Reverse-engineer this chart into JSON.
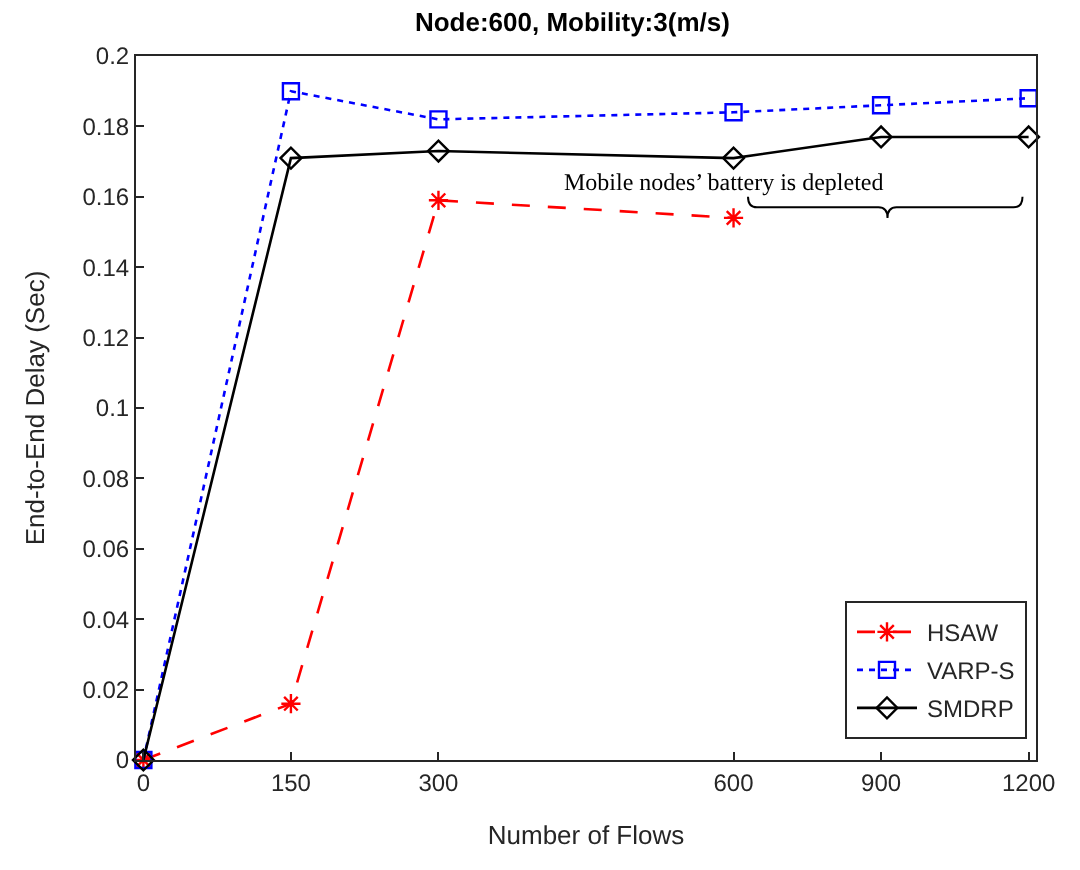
{
  "chart_data": {
    "type": "line",
    "title": "Node:600, Mobility:3(m/s)",
    "xlabel": "Number of Flows",
    "ylabel": "End-to-End Delay (Sec)",
    "categories": [
      "0",
      "150",
      "300",
      null,
      "600",
      "900",
      "1200"
    ],
    "series": [
      {
        "name": "HSAW",
        "color": "#ff0000",
        "marker": "cross",
        "line_style": "dashed",
        "values": [
          0,
          0.016,
          0.159,
          null,
          0.154,
          null,
          null
        ]
      },
      {
        "name": "VARP-S",
        "color": "#0000ff",
        "marker": "square",
        "line_style": "dotted",
        "values": [
          0,
          0.19,
          0.182,
          null,
          0.184,
          0.186,
          0.188
        ]
      },
      {
        "name": "SMDRP",
        "color": "#000000",
        "marker": "diamond",
        "line_style": "solid",
        "values": [
          0,
          0.171,
          0.173,
          null,
          0.171,
          0.177,
          0.177
        ]
      }
    ],
    "ylim": [
      0,
      0.2
    ],
    "yticks": [
      0,
      {
        "value": 0.02,
        "label": "0.02"
      },
      {
        "value": 0.04,
        "label": "0.04"
      },
      {
        "value": 0.06,
        "label": "0.06"
      },
      {
        "value": 0.08,
        "label": "0.08"
      },
      {
        "value": 0.1,
        "label": "0.1"
      },
      {
        "value": 0.12,
        "label": "0.12"
      },
      {
        "value": 0.14,
        "label": "0.14"
      },
      {
        "value": 0.16,
        "label": "0.16"
      },
      {
        "value": 0.18,
        "label": "0.18"
      },
      {
        "value": 0.2,
        "label": "0.2"
      }
    ],
    "annotations": [
      "Mobile nodes’ battery is depleted"
    ],
    "legend": "bottom right"
  }
}
